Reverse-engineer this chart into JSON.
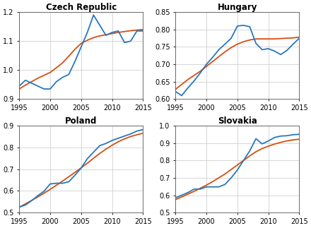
{
  "titles": [
    "Czech Republic",
    "Hungary",
    "Poland",
    "Slovakia"
  ],
  "years": [
    1995,
    1996,
    1997,
    1998,
    1999,
    2000,
    2001,
    2002,
    2003,
    2004,
    2005,
    2006,
    2007,
    2008,
    2009,
    2010,
    2011,
    2012,
    2013,
    2014,
    2015
  ],
  "data_blue": {
    "Czech Republic": [
      0.945,
      0.965,
      0.955,
      0.945,
      0.935,
      0.935,
      0.96,
      0.975,
      0.985,
      1.03,
      1.08,
      1.13,
      1.19,
      1.155,
      1.12,
      1.13,
      1.135,
      1.095,
      1.1,
      1.135,
      1.135
    ],
    "Hungary": [
      0.622,
      0.61,
      0.632,
      0.652,
      0.675,
      0.7,
      0.72,
      0.742,
      0.758,
      0.775,
      0.81,
      0.812,
      0.808,
      0.76,
      0.742,
      0.745,
      0.738,
      0.728,
      0.74,
      0.758,
      0.775
    ],
    "Poland": [
      0.525,
      0.535,
      0.555,
      0.578,
      0.598,
      0.632,
      0.635,
      0.635,
      0.642,
      0.672,
      0.705,
      0.748,
      0.778,
      0.808,
      0.818,
      0.832,
      0.842,
      0.852,
      0.862,
      0.875,
      0.882
    ],
    "Slovakia": [
      0.585,
      0.6,
      0.615,
      0.635,
      0.635,
      0.648,
      0.648,
      0.648,
      0.662,
      0.7,
      0.745,
      0.8,
      0.855,
      0.925,
      0.895,
      0.912,
      0.932,
      0.94,
      0.942,
      0.948,
      0.95
    ]
  },
  "data_orange": {
    "Czech Republic": [
      0.935,
      0.948,
      0.96,
      0.972,
      0.982,
      0.992,
      1.008,
      1.025,
      1.048,
      1.072,
      1.092,
      1.103,
      1.112,
      1.118,
      1.122,
      1.126,
      1.13,
      1.133,
      1.136,
      1.138,
      1.14
    ],
    "Hungary": [
      0.628,
      0.642,
      0.656,
      0.668,
      0.68,
      0.694,
      0.708,
      0.722,
      0.736,
      0.748,
      0.758,
      0.765,
      0.77,
      0.773,
      0.773,
      0.773,
      0.773,
      0.774,
      0.775,
      0.776,
      0.778
    ],
    "Poland": [
      0.525,
      0.54,
      0.556,
      0.572,
      0.589,
      0.607,
      0.626,
      0.645,
      0.665,
      0.685,
      0.706,
      0.727,
      0.75,
      0.772,
      0.792,
      0.81,
      0.826,
      0.839,
      0.85,
      0.858,
      0.865
    ],
    "Slovakia": [
      0.575,
      0.59,
      0.606,
      0.622,
      0.64,
      0.658,
      0.678,
      0.7,
      0.722,
      0.748,
      0.774,
      0.8,
      0.826,
      0.85,
      0.868,
      0.882,
      0.894,
      0.904,
      0.912,
      0.918,
      0.922
    ]
  },
  "ylims": {
    "Czech Republic": [
      0.9,
      1.2
    ],
    "Hungary": [
      0.6,
      0.85
    ],
    "Poland": [
      0.5,
      0.9
    ],
    "Slovakia": [
      0.5,
      1.0
    ]
  },
  "yticks": {
    "Czech Republic": [
      0.9,
      1.0,
      1.1,
      1.2
    ],
    "Hungary": [
      0.6,
      0.65,
      0.7,
      0.75,
      0.8,
      0.85
    ],
    "Poland": [
      0.5,
      0.6,
      0.7,
      0.8,
      0.9
    ],
    "Slovakia": [
      0.5,
      0.6,
      0.7,
      0.8,
      0.9,
      1.0
    ]
  },
  "blue_color": "#2878BE",
  "orange_color": "#D45010",
  "background_color": "#ffffff",
  "grid_color": "#D0D0D0"
}
